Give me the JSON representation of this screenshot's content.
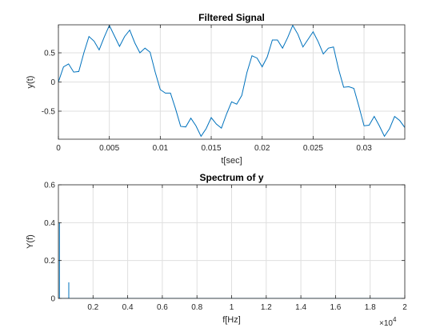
{
  "chart_data": [
    {
      "type": "line",
      "title": "Filtered Signal",
      "xlabel": "t[sec]",
      "ylabel": "y(t)",
      "xlim": [
        0,
        0.034
      ],
      "ylim": [
        -0.98,
        0.98
      ],
      "xticks": [
        0,
        0.005,
        0.01,
        0.015,
        0.02,
        0.025,
        0.03
      ],
      "xtick_labels": [
        "0",
        "0.005",
        "0.01",
        "0.015",
        "0.02",
        "0.025",
        "0.03"
      ],
      "yticks": [
        -0.5,
        0,
        0.5
      ],
      "ytick_labels": [
        "-0.5",
        "0",
        "0.5"
      ],
      "grid": true,
      "color": "#0072BD",
      "series": [
        {
          "x": [
            0,
            0.0005,
            0.001,
            0.0015,
            0.002,
            0.0025,
            0.003,
            0.0035,
            0.004,
            0.0045,
            0.005,
            0.0055,
            0.006,
            0.0065,
            0.007,
            0.0075,
            0.008,
            0.0085,
            0.009,
            0.0095,
            0.01,
            0.0105,
            0.011,
            0.0115,
            0.012,
            0.0125,
            0.013,
            0.0135,
            0.014,
            0.0145,
            0.015,
            0.0155,
            0.016,
            0.0165,
            0.017,
            0.0175,
            0.018,
            0.0185,
            0.019,
            0.0195,
            0.02,
            0.0205,
            0.021,
            0.0215,
            0.022,
            0.0225,
            0.023,
            0.0235,
            0.024,
            0.0245,
            0.025,
            0.0255,
            0.026,
            0.0265,
            0.027,
            0.0275,
            0.028,
            0.0285,
            0.029,
            0.0295,
            0.03,
            0.0305,
            0.031,
            0.0315,
            0.032,
            0.0325,
            0.033,
            0.0335,
            0.034
          ],
          "y": [
            0.0,
            0.26,
            0.31,
            0.17,
            0.18,
            0.5,
            0.78,
            0.7,
            0.55,
            0.77,
            0.97,
            0.79,
            0.61,
            0.78,
            0.89,
            0.67,
            0.5,
            0.58,
            0.51,
            0.17,
            -0.13,
            -0.19,
            -0.19,
            -0.46,
            -0.76,
            -0.77,
            -0.62,
            -0.75,
            -0.93,
            -0.8,
            -0.61,
            -0.72,
            -0.79,
            -0.55,
            -0.34,
            -0.38,
            -0.23,
            0.16,
            0.45,
            0.41,
            0.26,
            0.43,
            0.72,
            0.72,
            0.58,
            0.76,
            0.97,
            0.82,
            0.6,
            0.73,
            0.86,
            0.69,
            0.48,
            0.58,
            0.6,
            0.22,
            -0.09,
            -0.08,
            -0.11,
            -0.42,
            -0.75,
            -0.74,
            -0.59,
            -0.75,
            -0.93,
            -0.8,
            -0.59,
            -0.66,
            -0.78
          ]
        }
      ]
    },
    {
      "type": "line",
      "title": "Spectrum of y",
      "xlabel": "f[Hz]",
      "ylabel": "Y(f)",
      "xlim": [
        0,
        20000
      ],
      "ylim": [
        0,
        0.6
      ],
      "xticks": [
        2000,
        4000,
        6000,
        8000,
        10000,
        12000,
        14000,
        16000,
        18000,
        20000
      ],
      "xtick_labels": [
        "0.2",
        "0.4",
        "0.6",
        "0.8",
        "1",
        "1.2",
        "1.4",
        "1.6",
        "1.8",
        "2"
      ],
      "x_exponent_label": "×10",
      "x_exponent": "4",
      "yticks": [
        0,
        0.2,
        0.4,
        0.6
      ],
      "ytick_labels": [
        "0",
        "0.2",
        "0.4",
        "0.6"
      ],
      "grid": true,
      "color": "#0072BD",
      "series": [
        {
          "x": [
            0,
            60,
            60,
            60,
            600,
            600,
            600,
            20000
          ],
          "y": [
            0,
            0,
            0.4,
            0,
            0,
            0.085,
            0,
            0
          ]
        }
      ]
    }
  ]
}
